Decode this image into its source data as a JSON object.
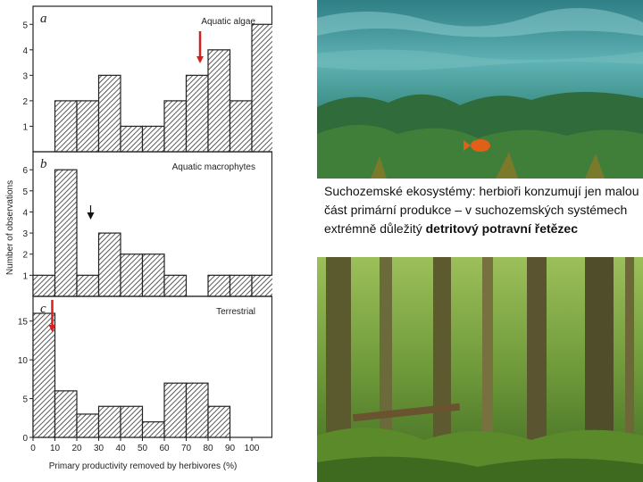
{
  "chart_data": [
    {
      "type": "bar",
      "panel": "a",
      "title": "Aquatic algae",
      "x": [
        0,
        10,
        20,
        30,
        40,
        50,
        60,
        70,
        80,
        90,
        100
      ],
      "values": [
        0,
        2,
        2,
        3,
        1,
        1,
        2,
        3,
        4,
        2,
        5
      ],
      "yticks": [
        1,
        2,
        3,
        4,
        5
      ],
      "ylim": [
        0,
        5.5
      ],
      "arrow_at_x": 80,
      "arrow_color": "#d42020"
    },
    {
      "type": "bar",
      "panel": "b",
      "title": "Aquatic macrophytes",
      "x": [
        0,
        10,
        20,
        30,
        40,
        50,
        60,
        70,
        80,
        90,
        100
      ],
      "values": [
        1,
        6,
        1,
        3,
        2,
        2,
        1,
        0,
        1,
        1,
        1
      ],
      "yticks": [
        1,
        2,
        3,
        4,
        5,
        6
      ],
      "ylim": [
        0,
        6.6
      ],
      "arrow_at_x": 30,
      "arrow_color": "#111111"
    },
    {
      "type": "bar",
      "panel": "c",
      "title": "Terrestrial",
      "x": [
        0,
        10,
        20,
        30,
        40,
        50,
        60,
        70,
        80,
        90,
        100
      ],
      "values": [
        16,
        6,
        3,
        4,
        4,
        2,
        7,
        7,
        4,
        0,
        0
      ],
      "yticks": [
        0,
        5,
        10,
        15
      ],
      "ylim": [
        0,
        17.5
      ],
      "arrow_at_x": 10,
      "arrow_color": "#d42020",
      "xticks": [
        0,
        10,
        20,
        30,
        40,
        50,
        60,
        70,
        80,
        90,
        100
      ]
    }
  ],
  "ylabel": "Number of observations",
  "xlabel": "Primary productivity removed by herbivores (%)",
  "caption": {
    "text": "Suchozemské ekosystémy: herbioři konzumují jen malou část primární produkce – v suchozemských systémech extrémně důležitý",
    "bold": "detritový potravní řetězec"
  }
}
